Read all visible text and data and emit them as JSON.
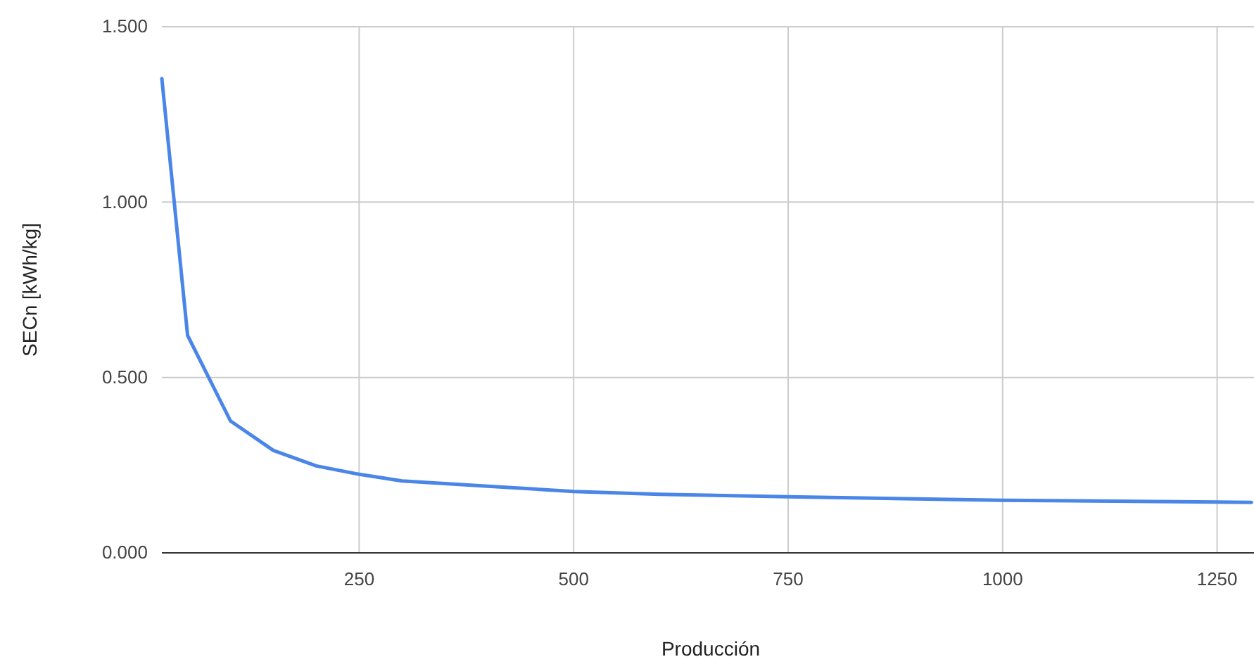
{
  "chart_data": {
    "type": "line",
    "xlabel": "Producción",
    "ylabel": "SECn [kWh/kg]",
    "x": [
      20,
      50,
      100,
      150,
      200,
      250,
      300,
      400,
      500,
      600,
      750,
      1000,
      1250,
      1290
    ],
    "series": [
      {
        "color": "#4a86e8",
        "values": [
          1.352,
          0.62,
          0.376,
          0.292,
          0.248,
          0.224,
          0.205,
          0.19,
          0.175,
          0.167,
          0.16,
          0.15,
          0.145,
          0.144
        ]
      }
    ],
    "xlim": [
      20,
      1293
    ],
    "ylim": [
      0,
      1.5
    ],
    "xticks": [
      250,
      500,
      750,
      1000,
      1250
    ],
    "yticks": [
      {
        "value": 0,
        "label": "0.000"
      },
      {
        "value": 0.5,
        "label": "0.500"
      },
      {
        "value": 1,
        "label": "1.000"
      },
      {
        "value": 1.5,
        "label": "1.500"
      }
    ],
    "grid": true,
    "marker": "none",
    "line_style": "solid"
  }
}
